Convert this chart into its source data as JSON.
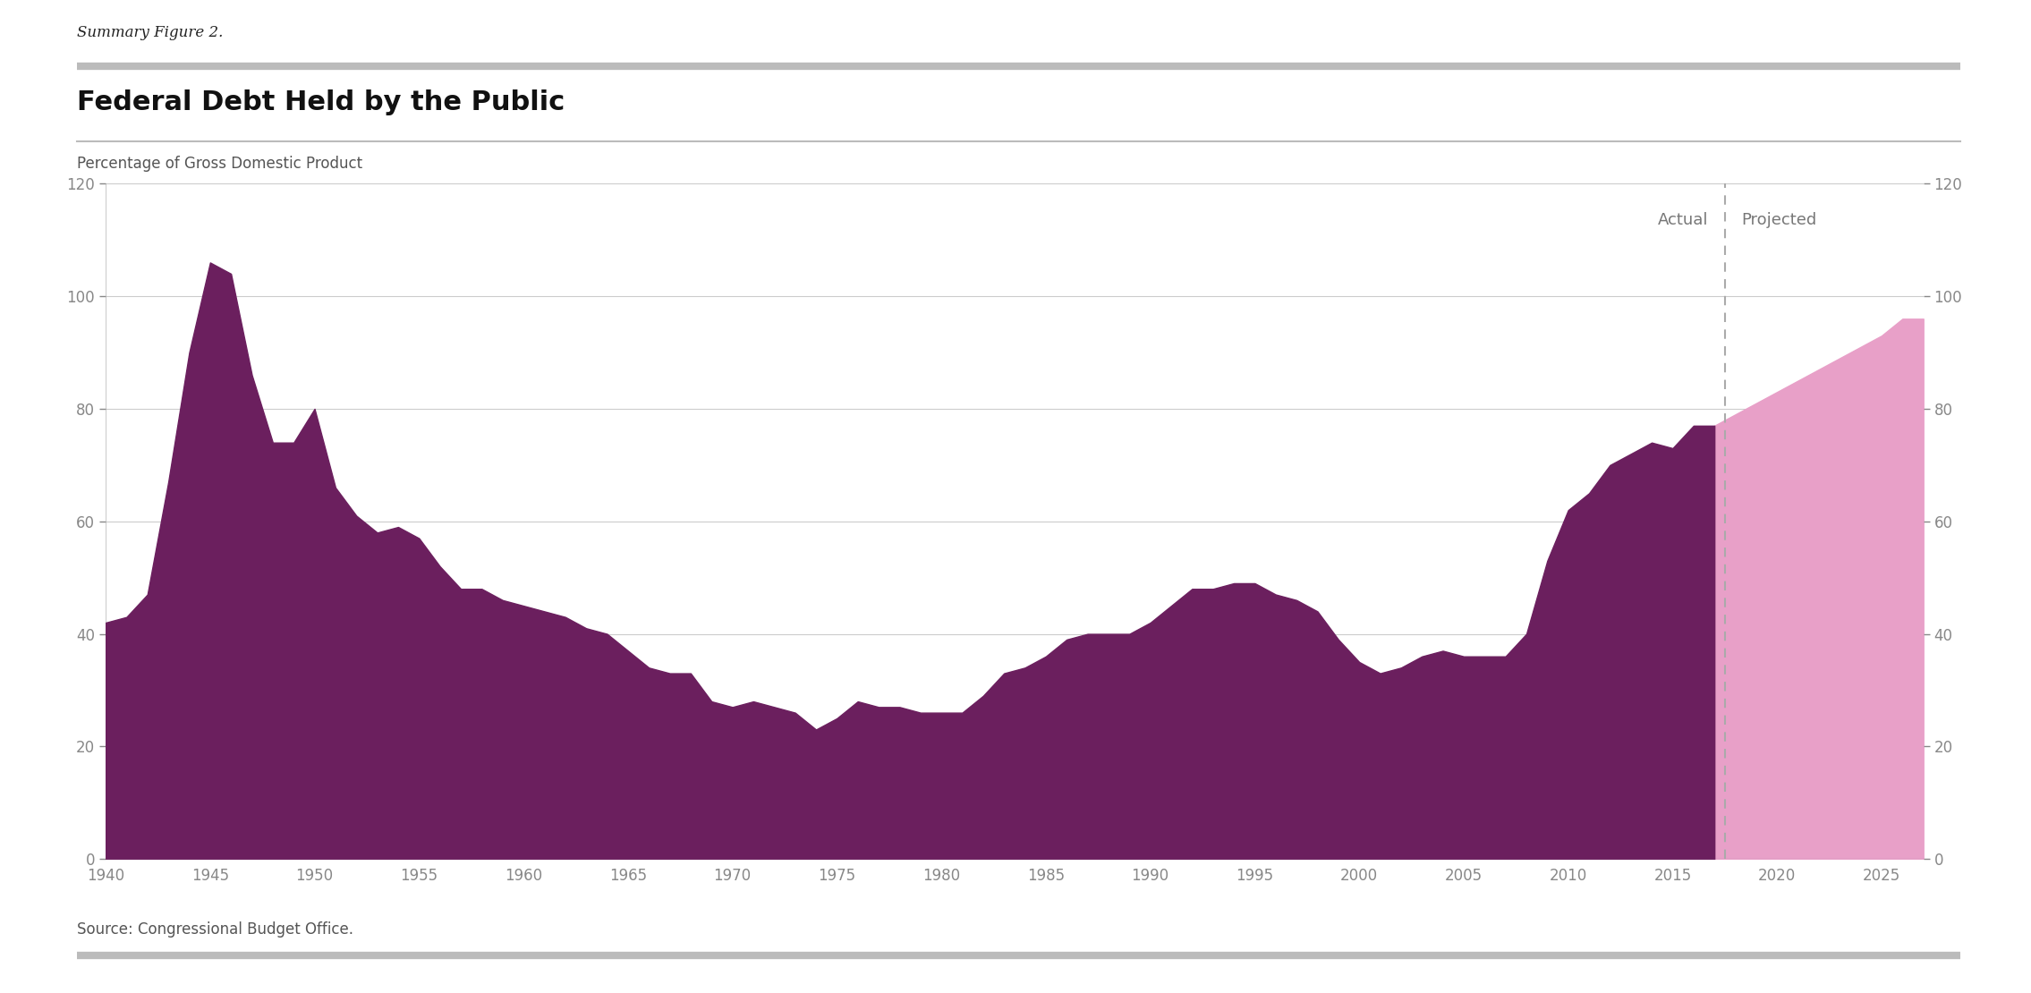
{
  "summary_figure": "Summary Figure 2.",
  "title": "Federal Debt Held by the Public",
  "subtitle": "Percentage of Gross Domestic Product",
  "source": "Source: Congressional Budget Office.",
  "actual_label": "Actual",
  "projected_label": "Projected",
  "divider_year": 2017.5,
  "ylim": [
    0,
    120
  ],
  "yticks": [
    0,
    20,
    40,
    60,
    80,
    100,
    120
  ],
  "xticks": [
    1940,
    1945,
    1950,
    1955,
    1960,
    1965,
    1970,
    1975,
    1980,
    1985,
    1990,
    1995,
    2000,
    2005,
    2010,
    2015,
    2020,
    2025
  ],
  "actual_color": "#6B1F5E",
  "projected_color": "#E8A0C8",
  "dashed_line_color": "#aaaaaa",
  "background_color": "#ffffff",
  "tick_color": "#888888",
  "grid_color": "#cccccc",
  "text_color": "#555555",
  "actual_data": {
    "years": [
      1940,
      1941,
      1942,
      1943,
      1944,
      1945,
      1946,
      1947,
      1948,
      1949,
      1950,
      1951,
      1952,
      1953,
      1954,
      1955,
      1956,
      1957,
      1958,
      1959,
      1960,
      1961,
      1962,
      1963,
      1964,
      1965,
      1966,
      1967,
      1968,
      1969,
      1970,
      1971,
      1972,
      1973,
      1974,
      1975,
      1976,
      1977,
      1978,
      1979,
      1980,
      1981,
      1982,
      1983,
      1984,
      1985,
      1986,
      1987,
      1988,
      1989,
      1990,
      1991,
      1992,
      1993,
      1994,
      1995,
      1996,
      1997,
      1998,
      1999,
      2000,
      2001,
      2002,
      2003,
      2004,
      2005,
      2006,
      2007,
      2008,
      2009,
      2010,
      2011,
      2012,
      2013,
      2014,
      2015,
      2016,
      2017
    ],
    "values": [
      42,
      43,
      47,
      67,
      90,
      106,
      104,
      86,
      74,
      74,
      80,
      66,
      61,
      58,
      59,
      57,
      52,
      48,
      48,
      46,
      45,
      44,
      43,
      41,
      40,
      37,
      34,
      33,
      33,
      28,
      27,
      28,
      27,
      26,
      23,
      25,
      28,
      27,
      27,
      26,
      26,
      26,
      29,
      33,
      34,
      36,
      39,
      40,
      40,
      40,
      42,
      45,
      48,
      48,
      49,
      49,
      47,
      46,
      44,
      39,
      35,
      33,
      34,
      36,
      37,
      36,
      36,
      36,
      40,
      53,
      62,
      65,
      70,
      72,
      74,
      73,
      77,
      77
    ]
  },
  "projected_data": {
    "years": [
      2017,
      2018,
      2019,
      2020,
      2021,
      2022,
      2023,
      2024,
      2025,
      2026,
      2027
    ],
    "values": [
      77,
      79,
      81,
      83,
      85,
      87,
      89,
      91,
      93,
      96,
      96
    ]
  }
}
